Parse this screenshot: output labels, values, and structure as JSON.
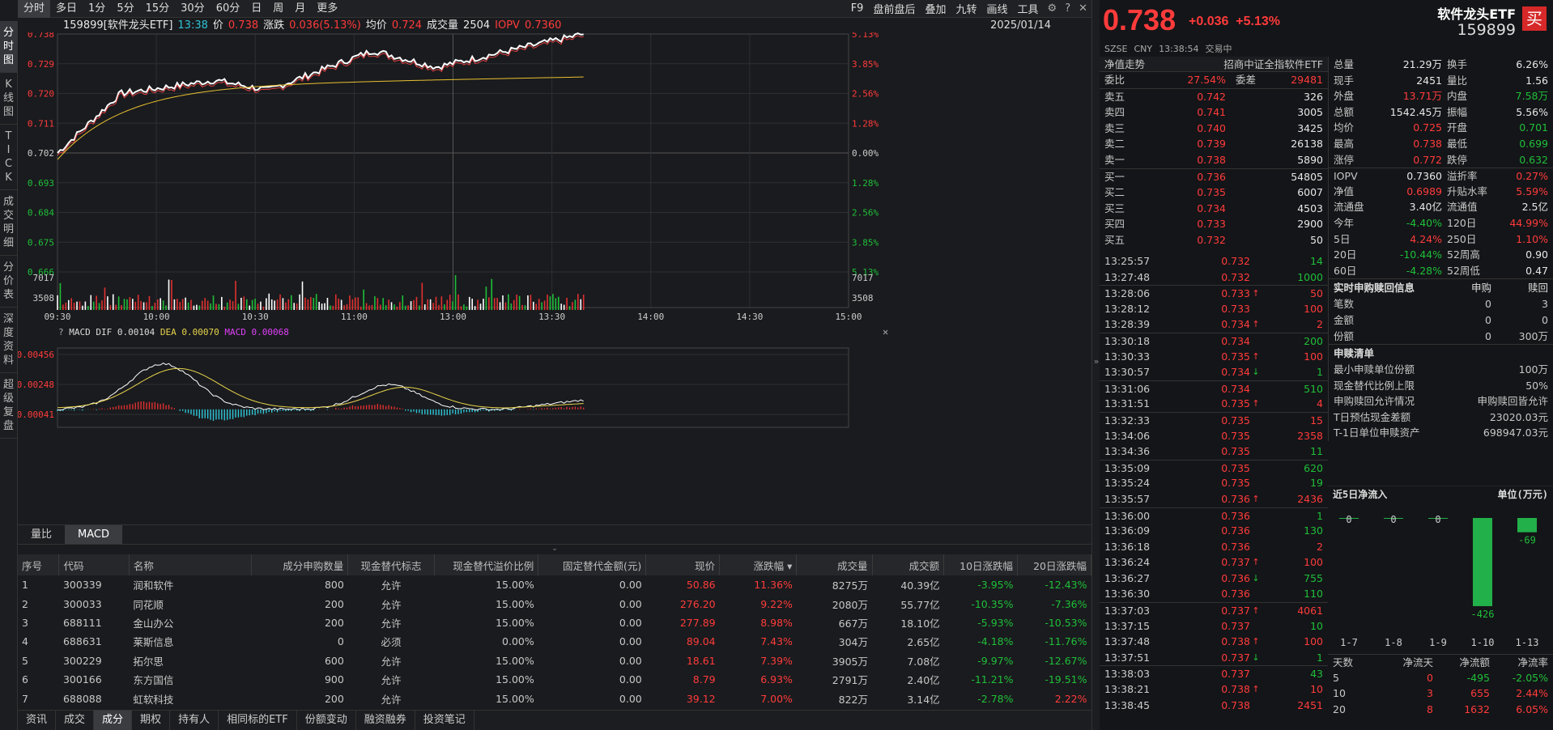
{
  "left_tabs": [
    "分时图",
    "K线图",
    "TICK",
    "成交明细",
    "分价表",
    "深度资料",
    "超级复盘"
  ],
  "period_tabs": [
    "分时",
    "多日",
    "1分",
    "5分",
    "15分",
    "30分",
    "60分",
    "日",
    "周",
    "月",
    "更多"
  ],
  "toolbar": [
    "F9",
    "盘前盘后",
    "叠加",
    "九转",
    "画线",
    "工具"
  ],
  "info": {
    "code_name": "159899[软件龙头ETF]",
    "time": "13:38",
    "price_label": "价",
    "price": "0.738",
    "chg_label": "涨跌",
    "chg": "0.036(5.13%)",
    "avg_label": "均价",
    "avg": "0.724",
    "vol_label": "成交量",
    "vol": "2504",
    "iopv_label": "IOPV",
    "iopv": "0.7360",
    "date": "2025/01/14"
  },
  "yaxis_left": [
    "0.738",
    "0.729",
    "0.720",
    "0.711",
    "0.702",
    "0.693",
    "0.684",
    "0.675",
    "0.666"
  ],
  "yaxis_right": [
    "5.13%",
    "3.85%",
    "2.56%",
    "1.28%",
    "0.00%",
    "1.28%",
    "2.56%",
    "3.85%",
    "5.13%"
  ],
  "vol_axis": [
    "7017",
    "3508"
  ],
  "time_axis": [
    "09:30",
    "10:00",
    "10:30",
    "11:00",
    "13:00",
    "13:30",
    "14:00",
    "14:30",
    "15:00"
  ],
  "macd": {
    "title": "MACD",
    "dif_label": "DIF",
    "dif": "0.00104",
    "dea_label": "DEA",
    "dea": "0.00070",
    "macd_label": "MACD",
    "macd": "0.00068",
    "yaxis": [
      "0.00456",
      "0.00248",
      "0.00041"
    ]
  },
  "subtabs": [
    "量比",
    "MACD"
  ],
  "table": {
    "headers": [
      "序号",
      "代码",
      "名称",
      "成分申购数量",
      "现金替代标志",
      "现金替代溢价比例",
      "固定替代金额(元)",
      "现价",
      "涨跌幅 ▾",
      "成交量",
      "成交额",
      "10日涨跌幅",
      "20日涨跌幅"
    ],
    "rows": [
      [
        "1",
        "300339",
        "润和软件",
        "800",
        "允许",
        "15.00%",
        "0.00",
        "50.86",
        "11.36%",
        "8275万",
        "40.39亿",
        "-3.95%",
        "-12.43%"
      ],
      [
        "2",
        "300033",
        "同花顺",
        "200",
        "允许",
        "15.00%",
        "0.00",
        "276.20",
        "9.22%",
        "2080万",
        "55.77亿",
        "-10.35%",
        "-7.36%"
      ],
      [
        "3",
        "688111",
        "金山办公",
        "200",
        "允许",
        "15.00%",
        "0.00",
        "277.89",
        "8.98%",
        "667万",
        "18.10亿",
        "-5.93%",
        "-10.53%"
      ],
      [
        "4",
        "688631",
        "莱斯信息",
        "0",
        "必须",
        "0.00%",
        "0.00",
        "89.04",
        "7.43%",
        "304万",
        "2.65亿",
        "-4.18%",
        "-11.76%"
      ],
      [
        "5",
        "300229",
        "拓尔思",
        "600",
        "允许",
        "15.00%",
        "0.00",
        "18.61",
        "7.39%",
        "3905万",
        "7.08亿",
        "-9.97%",
        "-12.67%"
      ],
      [
        "6",
        "300166",
        "东方国信",
        "900",
        "允许",
        "15.00%",
        "0.00",
        "8.79",
        "6.93%",
        "2791万",
        "2.40亿",
        "-11.21%",
        "-19.51%"
      ],
      [
        "7",
        "688088",
        "虹软科技",
        "200",
        "允许",
        "15.00%",
        "0.00",
        "39.12",
        "7.00%",
        "822万",
        "3.14亿",
        "-2.78%",
        "2.22%"
      ]
    ]
  },
  "bottom_tabs": [
    "资讯",
    "成交",
    "成分",
    "期权",
    "持有人",
    "相同标的ETF",
    "份额变动",
    "融资融券",
    "投资笔记"
  ],
  "quote": {
    "price": "0.738",
    "change": "+0.036",
    "pct": "+5.13%",
    "name": "软件龙头ETF",
    "code": "159899",
    "buy": "买",
    "market": "SZSE",
    "currency": "CNY",
    "ts": "13:38:54",
    "status": "交易中"
  },
  "nav_row": {
    "label": "净值走势",
    "index": "招商中证全指软件ETF"
  },
  "wb": {
    "label": "委比",
    "value": "27.54%",
    "label2": "委差",
    "value2": "29481"
  },
  "asks": [
    [
      "卖五",
      "0.742",
      "326"
    ],
    [
      "卖四",
      "0.741",
      "3005"
    ],
    [
      "卖三",
      "0.740",
      "3425"
    ],
    [
      "卖二",
      "0.739",
      "26138"
    ],
    [
      "卖一",
      "0.738",
      "5890"
    ]
  ],
  "bids": [
    [
      "买一",
      "0.736",
      "54805"
    ],
    [
      "买二",
      "0.735",
      "6007"
    ],
    [
      "买三",
      "0.734",
      "4503"
    ],
    [
      "买四",
      "0.733",
      "2900"
    ],
    [
      "买五",
      "0.732",
      "50"
    ]
  ],
  "ticks": [
    [
      "13:25:57",
      "0.732",
      "",
      "14",
      "g"
    ],
    [
      "13:27:48",
      "0.732",
      "",
      "1000",
      "g"
    ],
    [
      "13:28:06",
      "0.733",
      "↑",
      "50",
      "r"
    ],
    [
      "13:28:12",
      "0.733",
      "",
      "100",
      "r"
    ],
    [
      "13:28:39",
      "0.734",
      "↑",
      "2",
      "r"
    ],
    [
      "13:30:18",
      "0.734",
      "",
      "200",
      "g"
    ],
    [
      "13:30:33",
      "0.735",
      "↑",
      "100",
      "r"
    ],
    [
      "13:30:57",
      "0.734",
      "↓",
      "1",
      "g"
    ],
    [
      "13:31:06",
      "0.734",
      "",
      "510",
      "g"
    ],
    [
      "13:31:51",
      "0.735",
      "↑",
      "4",
      "r"
    ],
    [
      "13:32:33",
      "0.735",
      "",
      "15",
      "r"
    ],
    [
      "13:34:06",
      "0.735",
      "",
      "2358",
      "r"
    ],
    [
      "13:34:36",
      "0.735",
      "",
      "11",
      "g"
    ],
    [
      "13:35:09",
      "0.735",
      "",
      "620",
      "g"
    ],
    [
      "13:35:24",
      "0.735",
      "",
      "19",
      "g"
    ],
    [
      "13:35:57",
      "0.736",
      "↑",
      "2436",
      "r"
    ],
    [
      "13:36:00",
      "0.736",
      "",
      "1",
      "g"
    ],
    [
      "13:36:09",
      "0.736",
      "",
      "130",
      "g"
    ],
    [
      "13:36:18",
      "0.736",
      "",
      "2",
      "r"
    ],
    [
      "13:36:24",
      "0.737",
      "↑",
      "100",
      "r"
    ],
    [
      "13:36:27",
      "0.736",
      "↓",
      "755",
      "g"
    ],
    [
      "13:36:30",
      "0.736",
      "",
      "110",
      "g"
    ],
    [
      "13:37:03",
      "0.737",
      "↑",
      "4061",
      "r"
    ],
    [
      "13:37:15",
      "0.737",
      "",
      "10",
      "g"
    ],
    [
      "13:37:48",
      "0.738",
      "↑",
      "100",
      "r"
    ],
    [
      "13:37:51",
      "0.737",
      "↓",
      "1",
      "g"
    ],
    [
      "13:38:03",
      "0.737",
      "",
      "43",
      "g"
    ],
    [
      "13:38:21",
      "0.738",
      "↑",
      "10",
      "r"
    ],
    [
      "13:38:45",
      "0.738",
      "",
      "2451",
      "r"
    ]
  ],
  "stats": [
    [
      "总量",
      "21.29万",
      "换手",
      "6.26%",
      "w",
      "w"
    ],
    [
      "现手",
      "2451",
      "量比",
      "1.56",
      "w",
      "w"
    ],
    [
      "外盘",
      "13.71万",
      "内盘",
      "7.58万",
      "r",
      "g"
    ],
    [
      "总额",
      "1542.45万",
      "振幅",
      "5.56%",
      "w",
      "w"
    ],
    [
      "均价",
      "0.725",
      "开盘",
      "0.701",
      "r",
      "g"
    ],
    [
      "最高",
      "0.738",
      "最低",
      "0.699",
      "r",
      "g"
    ],
    [
      "涨停",
      "0.772",
      "跌停",
      "0.632",
      "r",
      "g"
    ],
    [
      "IOPV",
      "0.7360",
      "溢折率",
      "0.27%",
      "w",
      "r"
    ],
    [
      "净值",
      "0.6989",
      "升贴水率",
      "5.59%",
      "r",
      "r"
    ],
    [
      "流通盘",
      "3.40亿",
      "流通值",
      "2.5亿",
      "w",
      "w"
    ],
    [
      "今年",
      "-4.40%",
      "120日",
      "44.99%",
      "g",
      "r"
    ],
    [
      "5日",
      "4.24%",
      "250日",
      "1.10%",
      "r",
      "r"
    ],
    [
      "20日",
      "-10.44%",
      "52周高",
      "0.90",
      "g",
      "w"
    ],
    [
      "60日",
      "-4.28%",
      "52周低",
      "0.47",
      "g",
      "w"
    ]
  ],
  "redeem": {
    "title": "实时申购赎回信息",
    "col1": "申购",
    "col2": "赎回",
    "rows": [
      [
        "笔数",
        "0",
        "3"
      ],
      [
        "金额",
        "0",
        "0"
      ],
      [
        "份额",
        "0",
        "300万"
      ]
    ]
  },
  "list": {
    "title": "申赎清单",
    "rows": [
      [
        "最小申赎单位份额",
        "100万"
      ],
      [
        "现金替代比例上限",
        "50%"
      ],
      [
        "申购赎回允许情况",
        "申购赎回皆允许"
      ],
      [
        "T日预估现金差额",
        "23020.03元"
      ],
      [
        "T-1日单位申赎资产",
        "698947.03元"
      ]
    ]
  },
  "flow": {
    "title": "近5日净流入",
    "unit": "单位(万元)",
    "days": [
      "1-7",
      "1-8",
      "1-9",
      "1-10",
      "1-13"
    ],
    "values": [
      0,
      0,
      0,
      -426,
      -69
    ],
    "labels": [
      "0",
      "0",
      "0",
      "-426",
      "-69"
    ]
  },
  "flow_table": {
    "headers": [
      "天数",
      "净流天",
      "净流额",
      "净流率"
    ],
    "rows": [
      [
        "5",
        "0",
        "-495",
        "-2.05%",
        "g"
      ],
      [
        "10",
        "3",
        "655",
        "2.44%",
        "r"
      ],
      [
        "20",
        "8",
        "1632",
        "6.05%",
        "r"
      ]
    ]
  }
}
